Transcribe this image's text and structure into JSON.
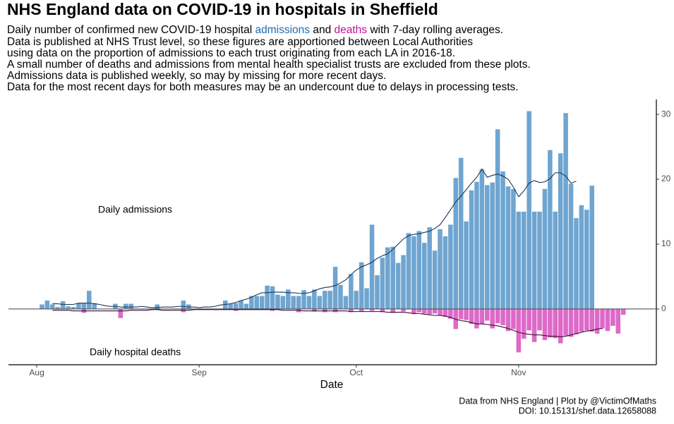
{
  "chart_data": {
    "type": "bar",
    "title": "NHS England data on COVID-19 in hospitals in Sheffield",
    "subtitle_first_line": [
      {
        "text": "Daily number of confirmed new COVID-19 hospital "
      },
      {
        "text": "admissions",
        "color": "#1f6db0"
      },
      {
        "text": " and "
      },
      {
        "text": "deaths",
        "color": "#c4119e"
      },
      {
        "text": " with 7-day rolling averages."
      }
    ],
    "subtitle_lines": [
      "Data is published at NHS Trust level, so these figures are apportioned between Local Authorities",
      "using data on the proportion of admissions to each trust originating from each LA in 2016-18.",
      "A small number of deaths and admissions from mental health specialist trusts are excluded from these plots.",
      "Admissions data is published weekly, so may by missing for more recent days.",
      "Data for the most recent days for both measures may be an undercount due to delays in processing tests."
    ],
    "annotations": [
      "Daily admissions",
      "Daily hospital deaths"
    ],
    "x_label": "Date",
    "caption": [
      "Data from NHS England | Plot by @VictimOfMaths",
      "DOI: 10.15131/shef.data.12658088"
    ],
    "xlim": [
      -5.4,
      118.3
    ],
    "xticks": [
      {
        "value": 0,
        "label": "Aug"
      },
      {
        "value": 31,
        "label": "Sep"
      },
      {
        "value": 61,
        "label": "Oct"
      },
      {
        "value": 92,
        "label": "Nov"
      }
    ],
    "ylim": [
      -8.6,
      32.3
    ],
    "yticks": [
      0,
      10,
      20,
      30
    ],
    "y_axis_side": "right",
    "zero_line": true,
    "x": [
      1,
      2,
      3,
      4,
      5,
      6,
      7,
      8,
      9,
      10,
      11,
      12,
      13,
      14,
      15,
      16,
      17,
      18,
      19,
      20,
      21,
      22,
      23,
      24,
      25,
      26,
      27,
      28,
      29,
      30,
      31,
      32,
      33,
      34,
      35,
      36,
      37,
      38,
      39,
      40,
      41,
      42,
      43,
      44,
      45,
      46,
      47,
      48,
      49,
      50,
      51,
      52,
      53,
      54,
      55,
      56,
      57,
      58,
      59,
      60,
      61,
      62,
      63,
      64,
      65,
      66,
      67,
      68,
      69,
      70,
      71,
      72,
      73,
      74,
      75,
      76,
      77,
      78,
      79,
      80,
      81,
      82,
      83,
      84,
      85,
      86,
      87,
      88,
      89,
      90,
      91,
      92,
      93,
      94,
      95,
      96,
      97,
      98,
      99,
      100,
      101,
      102,
      103,
      104,
      105,
      106,
      107,
      108,
      109,
      110,
      111,
      112
    ],
    "series": [
      {
        "type": "bar",
        "color": "#6fa5d0",
        "values": [
          0.7,
          1.3,
          0.7,
          0.3,
          1.2,
          0.4,
          0.3,
          0.9,
          0.9,
          2.8,
          0.9,
          0,
          0,
          0,
          0.8,
          0,
          0.8,
          0.8,
          0,
          0,
          0,
          0,
          0.7,
          0,
          0,
          0,
          0,
          1.3,
          0.7,
          0,
          0,
          0,
          0,
          0,
          0,
          1.3,
          0.8,
          0.9,
          1.3,
          0.8,
          2.0,
          2.0,
          2.0,
          3.6,
          3.5,
          2.2,
          2.0,
          3.0,
          2.0,
          2.0,
          2.9,
          2.0,
          3.0,
          2.0,
          2.8,
          2.8,
          6.5,
          3.7,
          2.0,
          5.4,
          2.8,
          7.2,
          3.2,
          13.0,
          5.2,
          7.9,
          9.5,
          9.6,
          7.1,
          8.3,
          11.7,
          11.2,
          12.0,
          10.2,
          12.6,
          9.0,
          12.3,
          11.2,
          13.0,
          20.2,
          23.3,
          13.5,
          18.3,
          19.6,
          21.5,
          19.1,
          19.5,
          27.7,
          21.2,
          18.9,
          18.5,
          15.0,
          15.0,
          30.5,
          15.0,
          15.0,
          18.5,
          24.5,
          15.0,
          24.0,
          30.2,
          19.3,
          14.0,
          16.0,
          15.3,
          19.0,
          null,
          null,
          null,
          null,
          null,
          null
        ]
      },
      {
        "type": "bar",
        "color": "#dd6ac8",
        "values": [
          0,
          0,
          0,
          0,
          0,
          0,
          0,
          0,
          -0.6,
          0,
          0,
          0,
          0,
          0,
          0,
          -1.4,
          0,
          0,
          0,
          0,
          0,
          0,
          0,
          0,
          0,
          0,
          0,
          -0.5,
          0,
          0,
          0,
          0,
          0,
          0,
          0,
          0,
          0,
          -0.3,
          0,
          0,
          0,
          0,
          0,
          0,
          -0.3,
          0,
          0,
          0,
          0,
          -0.5,
          0,
          0,
          -0.4,
          0,
          -0.5,
          0,
          -0.5,
          0,
          0,
          -0.5,
          0,
          -0.4,
          0,
          -0.3,
          0,
          -0.5,
          0,
          -0.6,
          0,
          -0.4,
          0,
          -0.8,
          -0.5,
          -0.7,
          -0.8,
          -0.7,
          -1.0,
          -1.2,
          -1.5,
          -3.1,
          -1.6,
          -1.7,
          -2.3,
          -3.0,
          -2.3,
          -1.8,
          -3.0,
          -2.2,
          -2.5,
          -3.4,
          -3.1,
          -6.7,
          -4.6,
          -3.3,
          -5.1,
          -3.3,
          -4.8,
          -4.4,
          -4.5,
          -5.3,
          -4.1,
          -4.3,
          -3.9,
          -3.5,
          -3.3,
          -3.5,
          -3.8,
          -3.0,
          -3.4,
          -2.6,
          -3.8,
          -0.9
        ]
      },
      {
        "type": "line",
        "color": "#17365d",
        "values": [
          null,
          null,
          0.8,
          0.8,
          0.7,
          0.7,
          0.7,
          0.9,
          0.9,
          0.9,
          0.8,
          0.7,
          0.5,
          0.4,
          0.4,
          0.3,
          0.3,
          0.3,
          0.3,
          0.4,
          0.3,
          0.2,
          0.2,
          0.3,
          0.3,
          0.3,
          0.4,
          0.4,
          0.3,
          0.3,
          0.2,
          0.3,
          0.3,
          0.4,
          0.6,
          0.7,
          0.8,
          1.0,
          1.3,
          1.5,
          1.8,
          2.2,
          2.5,
          2.5,
          2.6,
          2.6,
          2.6,
          2.5,
          2.5,
          2.4,
          2.4,
          2.5,
          2.8,
          3.1,
          3.3,
          3.4,
          3.6,
          4.0,
          4.5,
          5.3,
          6.0,
          6.5,
          6.8,
          7.2,
          7.8,
          8.2,
          8.5,
          9.2,
          10.0,
          10.8,
          11.3,
          11.5,
          11.6,
          11.8,
          12.0,
          12.4,
          13.0,
          14.1,
          15.3,
          16.5,
          17.4,
          18.4,
          19.4,
          20.3,
          21.6,
          20.3,
          20.6,
          20.8,
          20.5,
          20.0,
          18.8,
          17.3,
          18.2,
          19.4,
          19.8,
          19.5,
          19.6,
          20.1,
          21.0,
          21.0,
          20.5,
          19.4,
          19.7,
          null,
          null,
          null,
          null,
          null,
          null,
          null,
          null,
          null
        ]
      },
      {
        "type": "line",
        "color": "#3b0a30",
        "values": [
          null,
          null,
          -0.2,
          -0.2,
          -0.2,
          -0.2,
          -0.3,
          -0.3,
          -0.3,
          -0.3,
          -0.3,
          -0.3,
          -0.3,
          -0.3,
          -0.3,
          -0.3,
          -0.3,
          -0.2,
          -0.2,
          -0.2,
          -0.2,
          -0.1,
          -0.1,
          -0.2,
          -0.2,
          -0.2,
          -0.2,
          -0.2,
          -0.2,
          -0.1,
          -0.1,
          -0.1,
          -0.1,
          -0.1,
          -0.1,
          -0.1,
          -0.1,
          -0.1,
          -0.1,
          -0.1,
          -0.1,
          -0.1,
          -0.1,
          -0.1,
          -0.1,
          -0.1,
          -0.2,
          -0.2,
          -0.2,
          -0.2,
          -0.3,
          -0.3,
          -0.3,
          -0.3,
          -0.3,
          -0.3,
          -0.3,
          -0.3,
          -0.3,
          -0.4,
          -0.4,
          -0.4,
          -0.4,
          -0.4,
          -0.4,
          -0.4,
          -0.5,
          -0.5,
          -0.5,
          -0.5,
          -0.6,
          -0.7,
          -0.7,
          -0.8,
          -0.9,
          -1.0,
          -1.0,
          -1.1,
          -1.3,
          -1.6,
          -1.8,
          -1.9,
          -2.1,
          -2.3,
          -2.3,
          -2.4,
          -2.5,
          -2.6,
          -2.8,
          -3.0,
          -3.3,
          -3.6,
          -3.8,
          -3.9,
          -4.0,
          -4.0,
          -4.1,
          -4.2,
          -4.2,
          -4.3,
          -4.2,
          -4.0,
          -3.8,
          -3.6,
          -3.4,
          -3.3,
          -3.1,
          -3.0,
          null,
          null,
          null,
          null
        ]
      }
    ]
  }
}
